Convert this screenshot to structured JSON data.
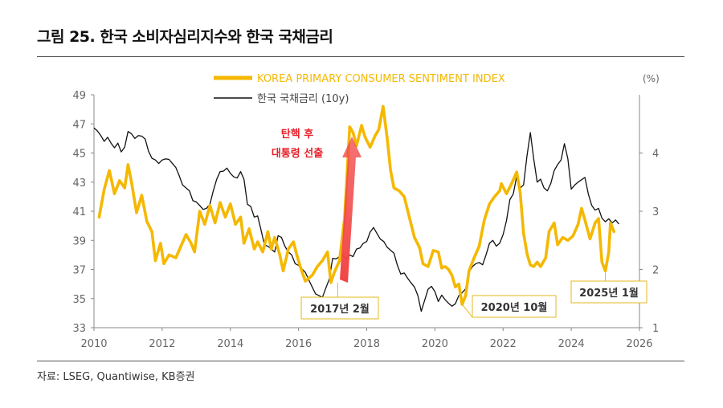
{
  "figure_title": "그림 25. 한국 소비자심리지수와 한국 국채금리",
  "source": "자료: LSEG, Quantiwise, KB증권",
  "colors": {
    "csi": "#F5B800",
    "bond": "#111111",
    "arrow": "#F24545",
    "annotation_text": "#E8202A",
    "callout_border": "#E4B81F",
    "axis": "#888888"
  },
  "chart_data": {
    "type": "line",
    "title": "",
    "xlabel": "",
    "ylabel": "",
    "y2label": "(%)",
    "xlim": [
      2010,
      2026
    ],
    "ylim": [
      33,
      49
    ],
    "y2lim": [
      1,
      5
    ],
    "x_ticks": [
      2010,
      2012,
      2014,
      2016,
      2018,
      2020,
      2022,
      2024,
      2026
    ],
    "y_ticks": [
      33,
      35,
      37,
      39,
      41,
      43,
      45,
      47,
      49
    ],
    "y2_ticks": [
      1,
      2,
      3,
      4
    ],
    "legend_position": "top-left",
    "series": [
      {
        "name": "KOREA PRIMARY CONSUMER SENTIMENT INDEX",
        "axis": "left",
        "color": "#F5B800",
        "points": [
          [
            2010.15,
            40.6
          ],
          [
            2010.3,
            42.5
          ],
          [
            2010.45,
            43.8
          ],
          [
            2010.6,
            42.2
          ],
          [
            2010.75,
            43.1
          ],
          [
            2010.9,
            42.6
          ],
          [
            2011.0,
            44.2
          ],
          [
            2011.1,
            43.0
          ],
          [
            2011.25,
            40.9
          ],
          [
            2011.4,
            42.1
          ],
          [
            2011.55,
            40.3
          ],
          [
            2011.7,
            39.6
          ],
          [
            2011.8,
            37.6
          ],
          [
            2011.95,
            38.8
          ],
          [
            2012.05,
            37.4
          ],
          [
            2012.2,
            38.0
          ],
          [
            2012.4,
            37.8
          ],
          [
            2012.55,
            38.6
          ],
          [
            2012.7,
            39.4
          ],
          [
            2012.85,
            38.8
          ],
          [
            2012.95,
            38.2
          ],
          [
            2013.1,
            41.0
          ],
          [
            2013.25,
            40.1
          ],
          [
            2013.4,
            41.4
          ],
          [
            2013.55,
            40.2
          ],
          [
            2013.7,
            41.6
          ],
          [
            2013.85,
            40.6
          ],
          [
            2014.0,
            41.5
          ],
          [
            2014.15,
            40.1
          ],
          [
            2014.3,
            40.6
          ],
          [
            2014.4,
            38.8
          ],
          [
            2014.55,
            39.8
          ],
          [
            2014.7,
            38.4
          ],
          [
            2014.8,
            38.9
          ],
          [
            2014.95,
            38.2
          ],
          [
            2015.1,
            39.6
          ],
          [
            2015.2,
            38.4
          ],
          [
            2015.3,
            39.2
          ],
          [
            2015.45,
            38.0
          ],
          [
            2015.55,
            36.9
          ],
          [
            2015.7,
            38.4
          ],
          [
            2015.85,
            38.9
          ],
          [
            2015.95,
            38.0
          ],
          [
            2016.05,
            37.2
          ],
          [
            2016.2,
            36.2
          ],
          [
            2016.4,
            36.6
          ],
          [
            2016.55,
            37.2
          ],
          [
            2016.7,
            37.6
          ],
          [
            2016.85,
            38.2
          ],
          [
            2016.95,
            36.1
          ],
          [
            2017.05,
            36.8
          ],
          [
            2017.2,
            37.6
          ],
          [
            2017.35,
            40.5
          ],
          [
            2017.5,
            46.8
          ],
          [
            2017.6,
            46.4
          ],
          [
            2017.7,
            45.5
          ],
          [
            2017.85,
            46.9
          ],
          [
            2017.95,
            46.1
          ],
          [
            2018.1,
            45.4
          ],
          [
            2018.25,
            46.2
          ],
          [
            2018.35,
            46.6
          ],
          [
            2018.48,
            48.2
          ],
          [
            2018.6,
            46.0
          ],
          [
            2018.7,
            43.8
          ],
          [
            2018.8,
            42.6
          ],
          [
            2018.95,
            42.4
          ],
          [
            2019.1,
            42.0
          ],
          [
            2019.25,
            40.6
          ],
          [
            2019.4,
            39.2
          ],
          [
            2019.55,
            38.5
          ],
          [
            2019.65,
            37.4
          ],
          [
            2019.8,
            37.2
          ],
          [
            2019.95,
            38.3
          ],
          [
            2020.1,
            38.2
          ],
          [
            2020.2,
            37.1
          ],
          [
            2020.3,
            37.2
          ],
          [
            2020.4,
            37.0
          ],
          [
            2020.5,
            36.6
          ],
          [
            2020.6,
            35.8
          ],
          [
            2020.7,
            36.0
          ],
          [
            2020.8,
            34.6
          ],
          [
            2020.9,
            35.2
          ],
          [
            2021.0,
            36.9
          ],
          [
            2021.15,
            37.8
          ],
          [
            2021.3,
            38.6
          ],
          [
            2021.45,
            40.4
          ],
          [
            2021.6,
            41.5
          ],
          [
            2021.75,
            42.0
          ],
          [
            2021.9,
            42.4
          ],
          [
            2021.95,
            42.9
          ],
          [
            2022.1,
            42.2
          ],
          [
            2022.25,
            42.9
          ],
          [
            2022.4,
            43.7
          ],
          [
            2022.5,
            42.3
          ],
          [
            2022.6,
            39.5
          ],
          [
            2022.7,
            38.1
          ],
          [
            2022.8,
            37.3
          ],
          [
            2022.9,
            37.2
          ],
          [
            2023.0,
            37.5
          ],
          [
            2023.1,
            37.2
          ],
          [
            2023.25,
            37.8
          ],
          [
            2023.35,
            39.6
          ],
          [
            2023.5,
            40.2
          ],
          [
            2023.6,
            38.7
          ],
          [
            2023.75,
            39.2
          ],
          [
            2023.9,
            39.0
          ],
          [
            2024.05,
            39.3
          ],
          [
            2024.2,
            40.1
          ],
          [
            2024.3,
            41.2
          ],
          [
            2024.4,
            40.4
          ],
          [
            2024.55,
            39.1
          ],
          [
            2024.7,
            40.2
          ],
          [
            2024.8,
            40.5
          ],
          [
            2024.9,
            37.5
          ],
          [
            2025.0,
            36.9
          ],
          [
            2025.1,
            38.2
          ],
          [
            2025.15,
            40.2
          ],
          [
            2025.25,
            39.6
          ]
        ]
      },
      {
        "name": "한국 국채금리 (10y)",
        "axis": "right",
        "color": "#111111",
        "points": [
          [
            2010.0,
            4.43
          ],
          [
            2010.1,
            4.38
          ],
          [
            2010.2,
            4.3
          ],
          [
            2010.3,
            4.2
          ],
          [
            2010.4,
            4.27
          ],
          [
            2010.5,
            4.17
          ],
          [
            2010.6,
            4.09
          ],
          [
            2010.7,
            4.17
          ],
          [
            2010.8,
            4.02
          ],
          [
            2010.9,
            4.1
          ],
          [
            2011.0,
            4.37
          ],
          [
            2011.1,
            4.33
          ],
          [
            2011.2,
            4.25
          ],
          [
            2011.3,
            4.3
          ],
          [
            2011.4,
            4.29
          ],
          [
            2011.5,
            4.24
          ],
          [
            2011.6,
            4.03
          ],
          [
            2011.7,
            3.91
          ],
          [
            2011.8,
            3.88
          ],
          [
            2011.9,
            3.82
          ],
          [
            2012.0,
            3.88
          ],
          [
            2012.1,
            3.9
          ],
          [
            2012.2,
            3.89
          ],
          [
            2012.3,
            3.82
          ],
          [
            2012.4,
            3.75
          ],
          [
            2012.5,
            3.61
          ],
          [
            2012.6,
            3.45
          ],
          [
            2012.7,
            3.4
          ],
          [
            2012.8,
            3.35
          ],
          [
            2012.9,
            3.18
          ],
          [
            2013.0,
            3.16
          ],
          [
            2013.1,
            3.1
          ],
          [
            2013.2,
            3.03
          ],
          [
            2013.3,
            3.05
          ],
          [
            2013.4,
            3.12
          ],
          [
            2013.5,
            3.35
          ],
          [
            2013.6,
            3.55
          ],
          [
            2013.7,
            3.68
          ],
          [
            2013.8,
            3.69
          ],
          [
            2013.9,
            3.74
          ],
          [
            2014.0,
            3.65
          ],
          [
            2014.1,
            3.59
          ],
          [
            2014.2,
            3.57
          ],
          [
            2014.3,
            3.68
          ],
          [
            2014.4,
            3.55
          ],
          [
            2014.5,
            3.12
          ],
          [
            2014.6,
            3.08
          ],
          [
            2014.7,
            2.9
          ],
          [
            2014.8,
            2.92
          ],
          [
            2014.9,
            2.68
          ],
          [
            2015.0,
            2.42
          ],
          [
            2015.1,
            2.4
          ],
          [
            2015.2,
            2.35
          ],
          [
            2015.3,
            2.3
          ],
          [
            2015.4,
            2.58
          ],
          [
            2015.5,
            2.55
          ],
          [
            2015.6,
            2.4
          ],
          [
            2015.7,
            2.3
          ],
          [
            2015.8,
            2.25
          ],
          [
            2015.9,
            2.1
          ],
          [
            2016.0,
            2.07
          ],
          [
            2016.1,
            2.01
          ],
          [
            2016.2,
            1.95
          ],
          [
            2016.3,
            1.82
          ],
          [
            2016.4,
            1.7
          ],
          [
            2016.5,
            1.58
          ],
          [
            2016.6,
            1.55
          ],
          [
            2016.7,
            1.52
          ],
          [
            2016.8,
            1.68
          ],
          [
            2016.9,
            1.83
          ],
          [
            2017.0,
            2.19
          ],
          [
            2017.1,
            2.18
          ],
          [
            2017.2,
            2.22
          ],
          [
            2017.3,
            2.24
          ],
          [
            2017.4,
            2.18
          ],
          [
            2017.5,
            2.25
          ],
          [
            2017.6,
            2.22
          ],
          [
            2017.7,
            2.35
          ],
          [
            2017.8,
            2.37
          ],
          [
            2017.9,
            2.45
          ],
          [
            2018.0,
            2.48
          ],
          [
            2018.1,
            2.64
          ],
          [
            2018.2,
            2.72
          ],
          [
            2018.3,
            2.62
          ],
          [
            2018.4,
            2.52
          ],
          [
            2018.5,
            2.48
          ],
          [
            2018.6,
            2.38
          ],
          [
            2018.7,
            2.33
          ],
          [
            2018.8,
            2.28
          ],
          [
            2018.9,
            2.07
          ],
          [
            2019.0,
            1.92
          ],
          [
            2019.1,
            1.94
          ],
          [
            2019.2,
            1.85
          ],
          [
            2019.3,
            1.77
          ],
          [
            2019.4,
            1.7
          ],
          [
            2019.5,
            1.55
          ],
          [
            2019.6,
            1.28
          ],
          [
            2019.7,
            1.47
          ],
          [
            2019.8,
            1.66
          ],
          [
            2019.9,
            1.71
          ],
          [
            2020.0,
            1.62
          ],
          [
            2020.1,
            1.45
          ],
          [
            2020.2,
            1.56
          ],
          [
            2020.3,
            1.48
          ],
          [
            2020.4,
            1.42
          ],
          [
            2020.5,
            1.37
          ],
          [
            2020.6,
            1.41
          ],
          [
            2020.7,
            1.55
          ],
          [
            2020.8,
            1.6
          ],
          [
            2020.9,
            1.67
          ],
          [
            2021.0,
            1.95
          ],
          [
            2021.1,
            2.05
          ],
          [
            2021.2,
            2.1
          ],
          [
            2021.3,
            2.12
          ],
          [
            2021.4,
            2.08
          ],
          [
            2021.5,
            2.25
          ],
          [
            2021.6,
            2.45
          ],
          [
            2021.7,
            2.5
          ],
          [
            2021.8,
            2.4
          ],
          [
            2021.9,
            2.45
          ],
          [
            2022.0,
            2.6
          ],
          [
            2022.1,
            2.84
          ],
          [
            2022.2,
            3.2
          ],
          [
            2022.3,
            3.3
          ],
          [
            2022.4,
            3.6
          ],
          [
            2022.5,
            3.4
          ],
          [
            2022.6,
            3.45
          ],
          [
            2022.7,
            3.95
          ],
          [
            2022.8,
            4.35
          ],
          [
            2022.9,
            3.9
          ],
          [
            2023.0,
            3.5
          ],
          [
            2023.1,
            3.55
          ],
          [
            2023.2,
            3.4
          ],
          [
            2023.3,
            3.35
          ],
          [
            2023.4,
            3.48
          ],
          [
            2023.5,
            3.7
          ],
          [
            2023.6,
            3.8
          ],
          [
            2023.7,
            3.88
          ],
          [
            2023.8,
            4.16
          ],
          [
            2023.9,
            3.9
          ],
          [
            2024.0,
            3.38
          ],
          [
            2024.1,
            3.45
          ],
          [
            2024.2,
            3.5
          ],
          [
            2024.3,
            3.54
          ],
          [
            2024.4,
            3.58
          ],
          [
            2024.5,
            3.3
          ],
          [
            2024.6,
            3.1
          ],
          [
            2024.7,
            3.02
          ],
          [
            2024.8,
            3.05
          ],
          [
            2024.9,
            2.88
          ],
          [
            2025.0,
            2.82
          ],
          [
            2025.1,
            2.87
          ],
          [
            2025.2,
            2.8
          ],
          [
            2025.3,
            2.85
          ],
          [
            2025.4,
            2.78
          ]
        ]
      }
    ],
    "annotations": [
      {
        "text": "탄핵 후",
        "type": "arrow_label_line1"
      },
      {
        "text": "대통령 선출",
        "type": "arrow_label_line2"
      },
      {
        "text": "2017년 2월",
        "type": "callout",
        "x": 2017.15,
        "y": 36.1
      },
      {
        "text": "2020년 10월",
        "type": "callout",
        "x": 2020.8,
        "y": 34.6
      },
      {
        "text": "2025년 1월",
        "type": "callout",
        "x": 2025.0,
        "y": 36.9
      }
    ]
  }
}
